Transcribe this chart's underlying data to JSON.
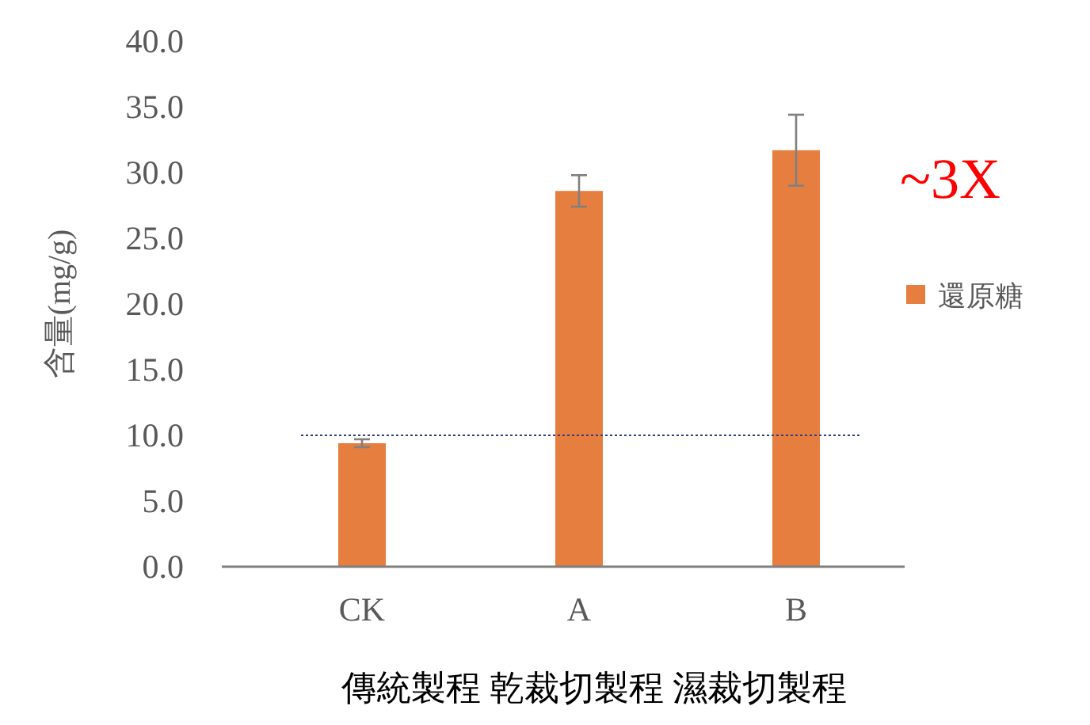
{
  "chart_data": {
    "type": "bar",
    "ylabel": "含量(mg/g)",
    "xlabel": "傳統製程 乾裁切製程 濕裁切製程",
    "categories": [
      "CK",
      "A",
      "B"
    ],
    "series": [
      {
        "name": "還原糖",
        "color": "#e67e40",
        "values": [
          9.4,
          28.6,
          31.7
        ],
        "errors": [
          0.3,
          1.2,
          2.7
        ]
      }
    ],
    "ylim": [
      0,
      40
    ],
    "yticks": [
      {
        "value": 0,
        "label": "0.0"
      },
      {
        "value": 5,
        "label": "5.0"
      },
      {
        "value": 10,
        "label": "10.0"
      },
      {
        "value": 15,
        "label": "15.0"
      },
      {
        "value": 20,
        "label": "20.0"
      },
      {
        "value": 25,
        "label": "25.0"
      },
      {
        "value": 30,
        "label": "30.0"
      },
      {
        "value": 35,
        "label": "35.0"
      },
      {
        "value": 40,
        "label": "40.0"
      }
    ],
    "ref_lines": [
      {
        "axis": "y",
        "value": 10,
        "color": "#2f3f7f",
        "line_style": "dotted"
      }
    ],
    "annotations": [
      "~3X"
    ],
    "legend": "right",
    "grid": false
  }
}
